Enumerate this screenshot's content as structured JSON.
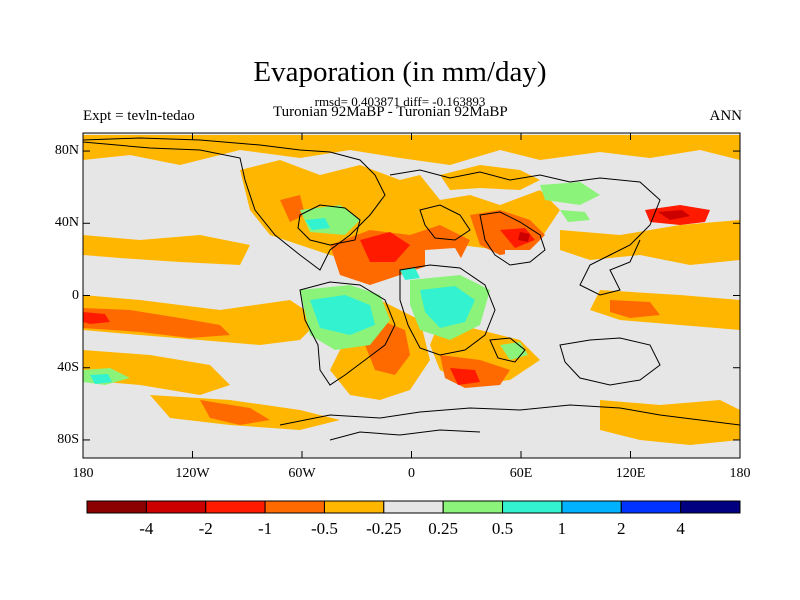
{
  "title": "Evaporation (in mm/day)",
  "stats": "rmsd= 0.403871 diff= -0.163893",
  "experiment": "Expt = tevln-tedao",
  "subtitle": "Turonian  92MaBP - Turonian  92MaBP",
  "season": "ANN",
  "map": {
    "projection": "cylindrical equidistant",
    "lon_range": [
      -180,
      180
    ],
    "lat_range": [
      -90,
      90
    ],
    "x_ticks": [
      {
        "value": -180,
        "label": "180"
      },
      {
        "value": -120,
        "label": "120W"
      },
      {
        "value": -60,
        "label": "60W"
      },
      {
        "value": 0,
        "label": "0"
      },
      {
        "value": 60,
        "label": "60E"
      },
      {
        "value": 120,
        "label": "120E"
      },
      {
        "value": 180,
        "label": "180"
      }
    ],
    "y_ticks": [
      {
        "value": 80,
        "label": "80N"
      },
      {
        "value": 40,
        "label": "40N"
      },
      {
        "value": 0,
        "label": "0"
      },
      {
        "value": -40,
        "label": "40S"
      },
      {
        "value": -80,
        "label": "80S"
      }
    ],
    "background_color": "#e6e6e6",
    "coastline_color": "#000000"
  },
  "colorbar": {
    "colors": [
      "#8b0000",
      "#cd0000",
      "#ff1a00",
      "#ff6a00",
      "#ffb600",
      "#e6e6e6",
      "#8cf37a",
      "#33f2d0",
      "#00b2ff",
      "#0033ff",
      "#000080"
    ],
    "levels": [
      "-4",
      "-2",
      "-1",
      "-0.5",
      "-0.25",
      "0.25",
      "0.5",
      "1",
      "2",
      "4"
    ]
  }
}
